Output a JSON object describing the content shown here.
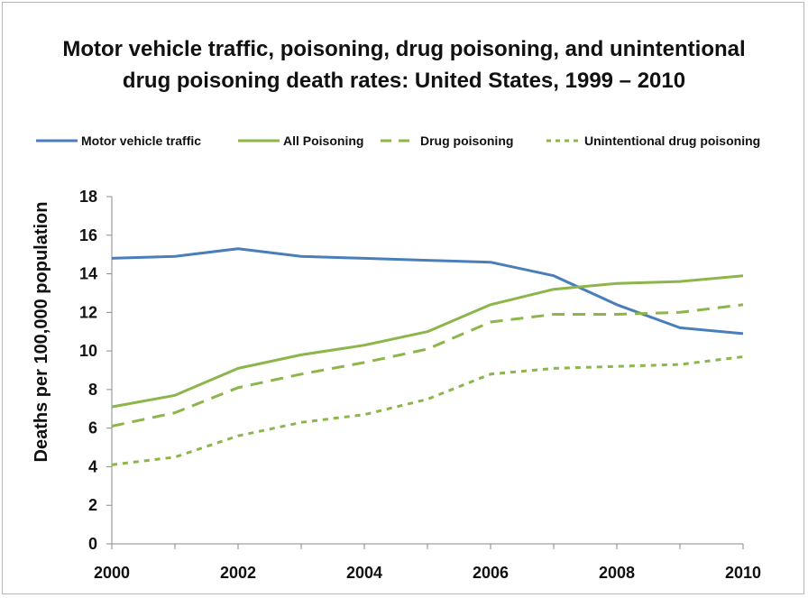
{
  "chart_data": {
    "type": "line",
    "title_lines": [
      "Motor vehicle traffic, poisoning, drug poisoning, and unintentional",
      "drug poisoning death rates: United States, 1999 – 2010"
    ],
    "xlabel": "",
    "ylabel": "Deaths per 100,000 population",
    "x": [
      2000,
      2001,
      2002,
      2003,
      2004,
      2005,
      2006,
      2007,
      2008,
      2009,
      2010
    ],
    "x_tick_labels": [
      "2000",
      "2002",
      "2004",
      "2006",
      "2008",
      "2010"
    ],
    "y_tick_labels": [
      "0",
      "2",
      "4",
      "6",
      "8",
      "10",
      "12",
      "14",
      "16",
      "18"
    ],
    "xlim": [
      2000,
      2010
    ],
    "ylim": [
      0,
      18
    ],
    "grid": false,
    "legend_position": "top",
    "series": [
      {
        "name": "Motor vehicle traffic",
        "color": "#4a7ebb",
        "dash": "solid",
        "values": [
          14.8,
          14.9,
          15.3,
          14.9,
          14.8,
          14.7,
          14.6,
          13.9,
          12.4,
          11.2,
          10.9
        ]
      },
      {
        "name": "All Poisoning",
        "color": "#8cb54a",
        "dash": "solid",
        "values": [
          7.1,
          7.7,
          9.1,
          9.8,
          10.3,
          11.0,
          12.4,
          13.2,
          13.5,
          13.6,
          13.9
        ]
      },
      {
        "name": "Drug poisoning",
        "color": "#8cb54a",
        "dash": "long",
        "values": [
          6.1,
          6.8,
          8.1,
          8.8,
          9.4,
          10.1,
          11.5,
          11.9,
          11.9,
          12.0,
          12.4
        ]
      },
      {
        "name": "Unintentional drug poisoning",
        "color": "#8cb54a",
        "dash": "short",
        "values": [
          4.1,
          4.5,
          5.6,
          6.3,
          6.7,
          7.5,
          8.8,
          9.1,
          9.2,
          9.3,
          9.7
        ]
      }
    ]
  }
}
